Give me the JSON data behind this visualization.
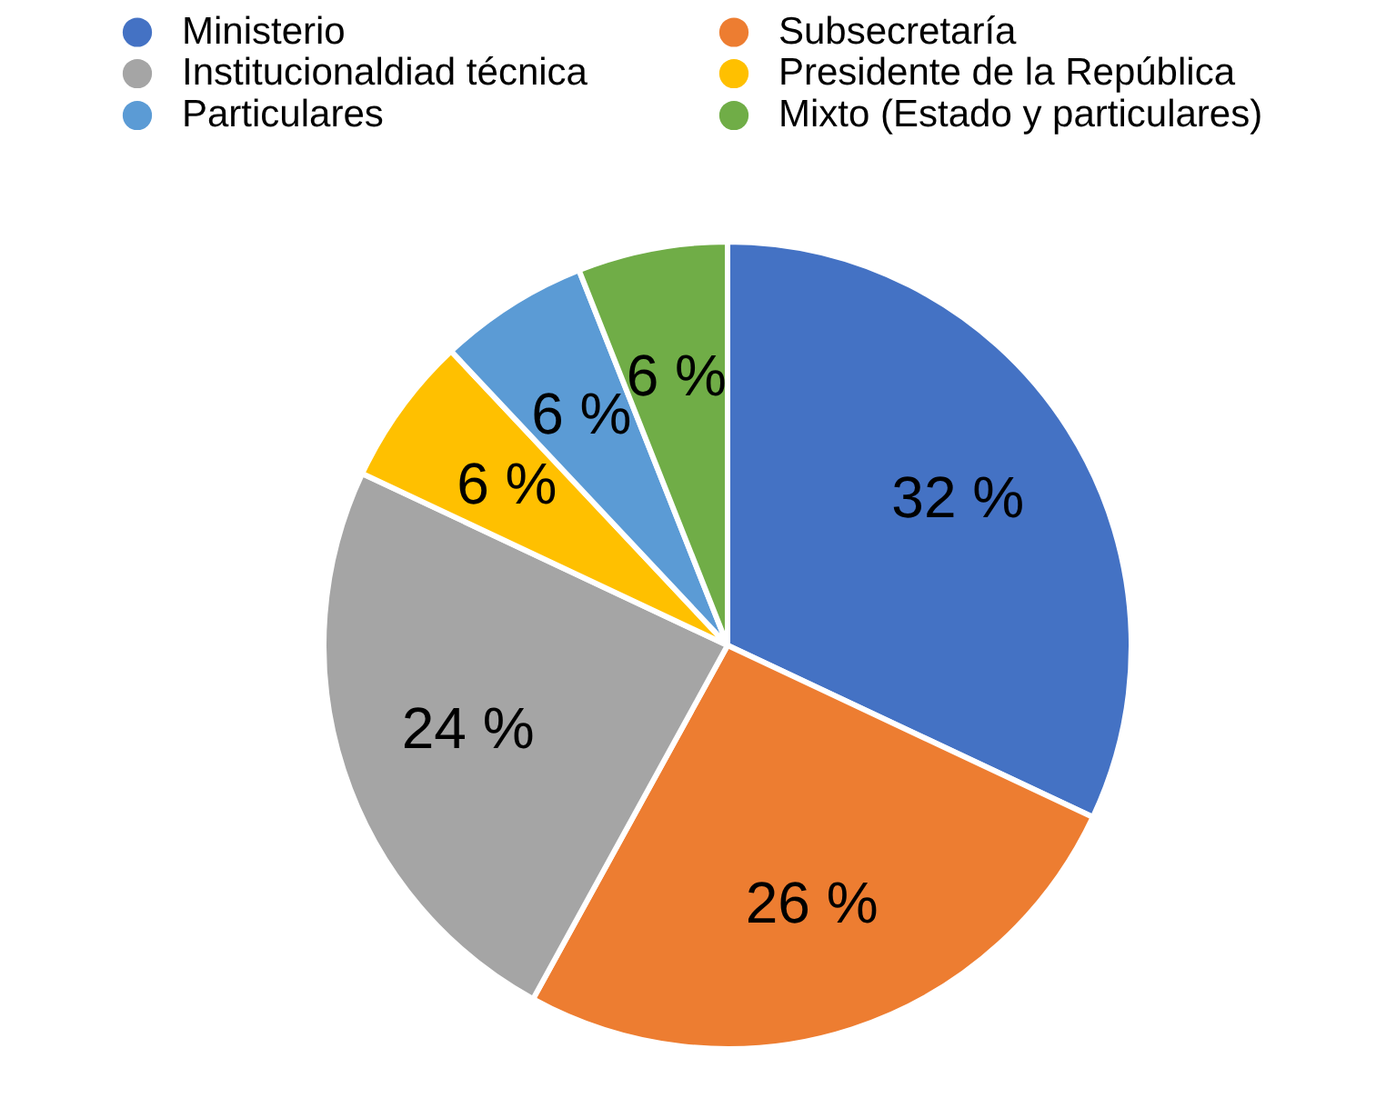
{
  "chart_data": {
    "type": "pie",
    "categories": [
      "Ministerio",
      "Subsecretaría",
      "Institucionaldiad técnica",
      "Presidente de la República",
      "Particulares",
      "Mixto (Estado y particulares)"
    ],
    "values": [
      32,
      26,
      24,
      6,
      6,
      6
    ],
    "colors": [
      "#4472c4",
      "#ed7d31",
      "#a5a5a5",
      "#ffc000",
      "#5b9bd5",
      "#70ad47"
    ],
    "value_labels": [
      "32 %",
      "26 %",
      "24 %",
      "6 %",
      "6 %",
      "6 %"
    ],
    "legend": "top"
  }
}
